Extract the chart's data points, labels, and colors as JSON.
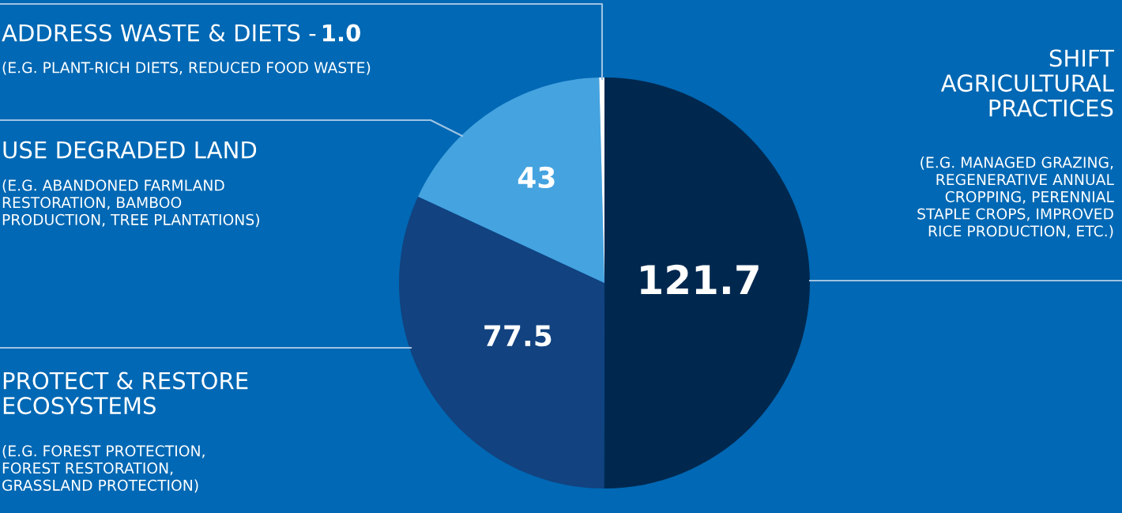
{
  "chart_data": {
    "type": "pie",
    "categories": [
      "SHIFT\nAGRICULTURAL\nPRACTICES",
      "PROTECT & RESTORE\nECOSYSTEMS",
      "USE DEGRADED LAND",
      "ADDRESS WASTE & DIETS -"
    ],
    "values": [
      121.7,
      77.5,
      43,
      1.0
    ],
    "value_labels": [
      "121.7",
      "77.5",
      "43",
      "1.0"
    ],
    "colors": [
      "#00284f",
      "#12427f",
      "#45a3e0",
      "#ffffff"
    ],
    "annotations": [
      "(E.G. MANAGED GRAZING,\nREGENERATIVE ANNUAL\nCROPPING, PERENNIAL\nSTAPLE CROPS, IMPROVED\nRICE PRODUCTION, ETC.)",
      "(E.G. FOREST PROTECTION,\nFOREST RESTORATION,\nGRASSLAND PROTECTION)",
      "(E.G. ABANDONED FARMLAND\nRESTORATION, BAMBOO\nPRODUCTION, TREE PLANTATIONS)",
      "(E.G. PLANT-RICH DIETS, REDUCED FOOD WASTE)"
    ]
  }
}
